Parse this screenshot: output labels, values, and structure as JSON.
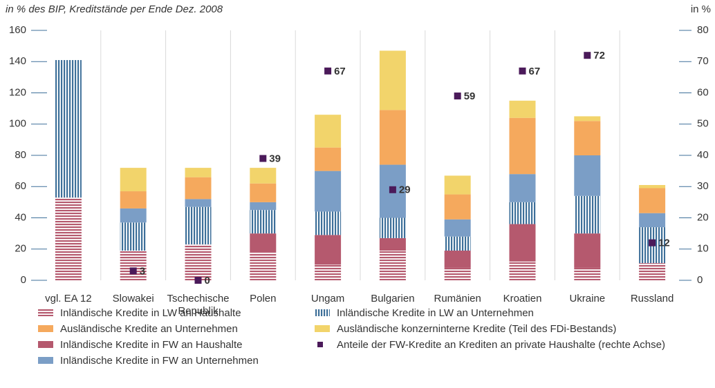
{
  "chart_data": {
    "type": "bar",
    "title": "in % des BIP, Kreditstände per Ende Dez. 2008",
    "y2_label": "in %",
    "stacked": true,
    "categories": [
      "vgl. EA 12",
      "Slowakei",
      "Tschechische Republik",
      "Polen",
      "Ungam",
      "Bulgarien",
      "Rumänien",
      "Kroatien",
      "Ukraine",
      "Russland"
    ],
    "series": [
      {
        "name": "Inländische Kredite in LW an Haushalte",
        "color": "#b5596e",
        "pattern": "horizontal",
        "values": [
          53,
          19,
          23,
          18,
          10,
          19,
          8,
          12,
          8,
          11
        ]
      },
      {
        "name": "Inländische Kredite in FW an Haushalte",
        "color": "#b5596e",
        "values": [
          0,
          0,
          0,
          12,
          19,
          8,
          11,
          24,
          22,
          0
        ]
      },
      {
        "name": "Inländische Kredite in LW an Unternehmen",
        "color": "#3d6f99",
        "pattern": "vertical",
        "values": [
          88,
          18,
          24,
          15,
          15,
          13,
          9,
          14,
          24,
          23
        ]
      },
      {
        "name": "Inländische Kredite in FW an Unternehmen",
        "color": "#7b9ec6",
        "values": [
          0,
          9,
          5,
          5,
          26,
          34,
          11,
          18,
          26,
          9
        ]
      },
      {
        "name": "Ausländische Kredite an Unternehmen",
        "color": "#f5a95d",
        "values": [
          0,
          11,
          14,
          12,
          15,
          35,
          16,
          36,
          22,
          16
        ]
      },
      {
        "name": "Ausländische konzerninterne Kredite (Teil des FDi-Bestands)",
        "color": "#f2d46b",
        "values": [
          0,
          15,
          6,
          10,
          21,
          38,
          12,
          11,
          3,
          2
        ]
      },
      {
        "name": "Anteile der FW-Kredite an Krediten an private Haushalte (rechte Achse)",
        "type": "scatter",
        "axis": "y2",
        "color": "#4b1a5a",
        "values": [
          null,
          3,
          0,
          39,
          67,
          29,
          59,
          67,
          72,
          12
        ]
      }
    ],
    "ylim": [
      0,
      160
    ],
    "yticks": [
      0,
      20,
      40,
      60,
      80,
      100,
      120,
      140,
      160
    ],
    "y2lim": [
      0,
      80
    ],
    "y2ticks": [
      0,
      10,
      20,
      30,
      40,
      50,
      60,
      70,
      80
    ],
    "grid": false
  }
}
